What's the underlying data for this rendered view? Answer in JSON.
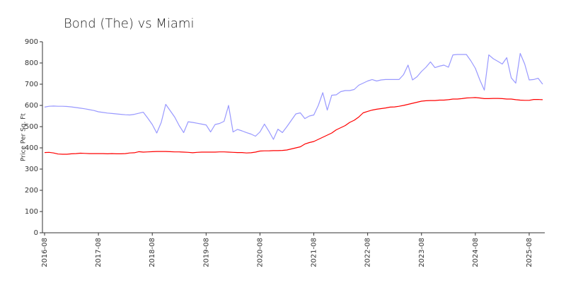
{
  "chart_data": {
    "type": "line",
    "title": "Bond (The) vs Miami",
    "ylabel": "Price Per Sq. Ft",
    "x": [
      "2016-08",
      "2016-09",
      "2016-10",
      "2016-11",
      "2016-12",
      "2017-01",
      "2017-02",
      "2017-03",
      "2017-04",
      "2017-05",
      "2017-06",
      "2017-07",
      "2017-08",
      "2017-09",
      "2017-10",
      "2017-11",
      "2017-12",
      "2018-01",
      "2018-02",
      "2018-03",
      "2018-04",
      "2018-05",
      "2018-06",
      "2018-07",
      "2018-08",
      "2018-09",
      "2018-10",
      "2018-11",
      "2018-12",
      "2019-01",
      "2019-02",
      "2019-03",
      "2019-04",
      "2019-05",
      "2019-06",
      "2019-07",
      "2019-08",
      "2019-09",
      "2019-10",
      "2019-11",
      "2019-12",
      "2020-01",
      "2020-02",
      "2020-03",
      "2020-04",
      "2020-05",
      "2020-06",
      "2020-07",
      "2020-08",
      "2020-09",
      "2020-10",
      "2020-11",
      "2020-12",
      "2021-01",
      "2021-02",
      "2021-03",
      "2021-04",
      "2021-05",
      "2021-06",
      "2021-07",
      "2021-08",
      "2021-09",
      "2021-10",
      "2021-11",
      "2021-12",
      "2022-01",
      "2022-02",
      "2022-03",
      "2022-04",
      "2022-05",
      "2022-06",
      "2022-07",
      "2022-08",
      "2022-09",
      "2022-10",
      "2022-11",
      "2022-12",
      "2023-01",
      "2023-02",
      "2023-03",
      "2023-04",
      "2023-05",
      "2023-06",
      "2023-07",
      "2023-08",
      "2023-09",
      "2023-10",
      "2023-11",
      "2023-12",
      "2024-01",
      "2024-02",
      "2024-03",
      "2024-04",
      "2024-05",
      "2024-06",
      "2024-07",
      "2024-08",
      "2024-09",
      "2024-10",
      "2024-11",
      "2024-12",
      "2025-01",
      "2025-02",
      "2025-03",
      "2025-04",
      "2025-05",
      "2025-06",
      "2025-07",
      "2025-08",
      "2025-09",
      "2025-10",
      "2025-11"
    ],
    "series": [
      {
        "color": "#9999ff",
        "values": [
          592,
          596,
          597,
          596,
          596,
          595,
          593,
          590,
          587,
          584,
          580,
          576,
          570,
          567,
          564,
          562,
          560,
          558,
          556,
          555,
          558,
          563,
          568,
          540,
          510,
          470,
          520,
          605,
          575,
          545,
          505,
          472,
          523,
          520,
          516,
          512,
          508,
          475,
          510,
          515,
          525,
          600,
          475,
          487,
          480,
          472,
          465,
          455,
          475,
          512,
          478,
          440,
          488,
          472,
          500,
          530,
          560,
          565,
          538,
          550,
          555,
          600,
          660,
          578,
          648,
          650,
          665,
          670,
          670,
          675,
          695,
          705,
          715,
          722,
          715,
          720,
          722,
          722,
          722,
          722,
          745,
          790,
          720,
          735,
          760,
          780,
          805,
          778,
          785,
          790,
          780,
          838,
          840,
          840,
          840,
          810,
          775,
          720,
          672,
          838,
          820,
          808,
          795,
          825,
          730,
          705,
          845,
          795,
          720,
          722,
          728,
          700
        ]
      },
      {
        "color": "#ff0000",
        "values": [
          378,
          379,
          376,
          371,
          370,
          370,
          372,
          373,
          375,
          374,
          373,
          373,
          373,
          373,
          372,
          373,
          372,
          372,
          373,
          376,
          377,
          382,
          380,
          381,
          382,
          383,
          383,
          383,
          382,
          381,
          381,
          380,
          379,
          377,
          379,
          380,
          380,
          380,
          380,
          381,
          381,
          380,
          379,
          378,
          378,
          376,
          377,
          380,
          385,
          386,
          386,
          387,
          387,
          388,
          390,
          395,
          400,
          405,
          418,
          425,
          430,
          440,
          450,
          460,
          470,
          485,
          495,
          505,
          520,
          530,
          545,
          565,
          572,
          578,
          582,
          585,
          588,
          592,
          593,
          596,
          600,
          605,
          610,
          615,
          620,
          622,
          623,
          623,
          625,
          625,
          627,
          630,
          630,
          632,
          635,
          636,
          637,
          635,
          632,
          632,
          633,
          633,
          632,
          630,
          630,
          627,
          625,
          624,
          624,
          628,
          628,
          627
        ]
      }
    ],
    "xlim": [
      "2016-08",
      "2025-11"
    ],
    "xticks": [
      "2016-08",
      "2017-08",
      "2018-08",
      "2019-08",
      "2020-08",
      "2021-08",
      "2022-08",
      "2023-08",
      "2024-08",
      "2025-08"
    ],
    "ylim": [
      0,
      900
    ],
    "yticks": [
      0,
      100,
      200,
      300,
      400,
      500,
      600,
      700,
      800,
      900
    ],
    "grid": false
  }
}
